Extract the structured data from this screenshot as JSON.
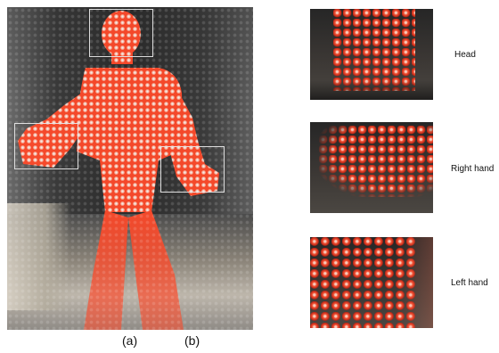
{
  "captions": {
    "a": "(a)",
    "b": "(b)"
  },
  "crops": [
    {
      "label": "Head"
    },
    {
      "label": "Right hand"
    },
    {
      "label": "Left hand"
    }
  ],
  "colors": {
    "figure_red": "#ff4a2a",
    "background_dark": "#2b2b2b",
    "roi_outline": "#e6e6e6"
  }
}
